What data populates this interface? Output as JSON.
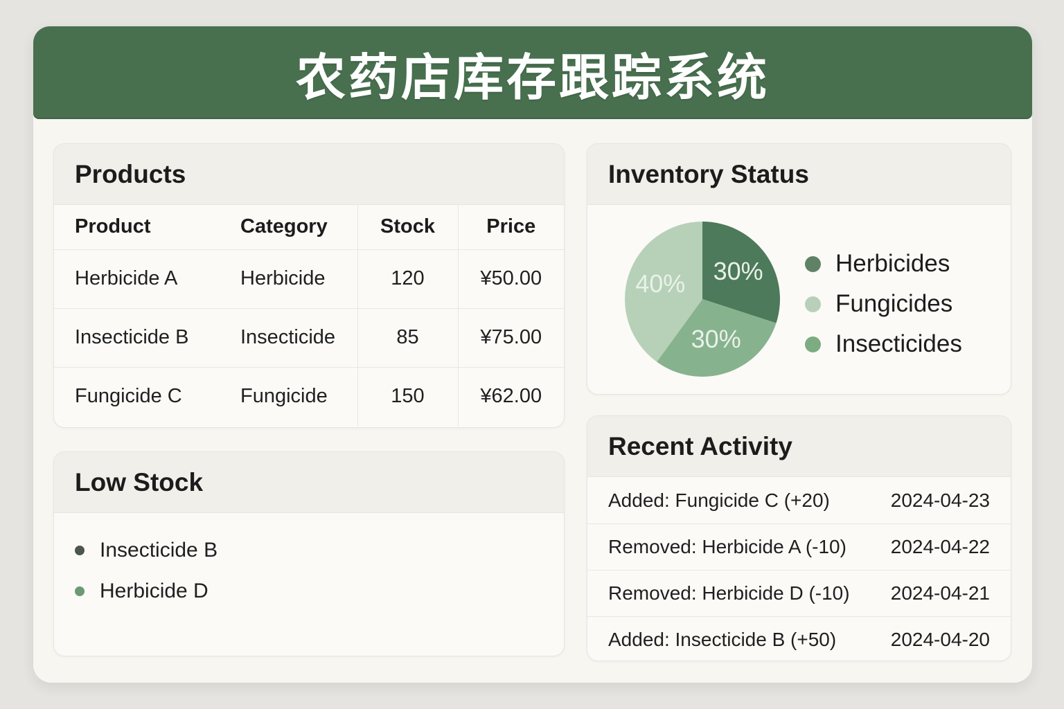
{
  "header": {
    "title": "农药店库存跟踪系统"
  },
  "colors": {
    "page_background": "#e5e4e0",
    "card_background": "#f7f6f1",
    "header_background": "#48704f",
    "header_text": "#ffffff",
    "panel_background": "#fbfaf7",
    "panel_header_background": "#f0efe9"
  },
  "products": {
    "title": "Products",
    "columns": [
      "Product",
      "Category",
      "Stock",
      "Price"
    ],
    "rows": [
      {
        "product": "Herbicide A",
        "category": "Herbicide",
        "stock": "120",
        "price": "¥50.00"
      },
      {
        "product": "Insecticide B",
        "category": "Insecticide",
        "stock": "85",
        "price": "¥75.00"
      },
      {
        "product": "Fungicide C",
        "category": "Fungicide",
        "stock": "150",
        "price": "¥62.00"
      }
    ]
  },
  "low_stock": {
    "title": "Low Stock",
    "items": [
      {
        "label": "Insecticide B",
        "color": "#4d564d"
      },
      {
        "label": "Herbicide D",
        "color": "#6a9a74"
      }
    ]
  },
  "inventory_status": {
    "title": "Inventory Status"
  },
  "chart_data": {
    "type": "pie",
    "title": "Inventory Status",
    "start_angle_deg": 0,
    "direction": "clockwise",
    "slices": [
      {
        "label": "Herbicides",
        "value_pct": 30,
        "display": "30%",
        "color": "#4d7a5a"
      },
      {
        "label": "Insecticides",
        "value_pct": 30,
        "display": "30%",
        "color": "#87b28e"
      },
      {
        "label": "Fungicides",
        "value_pct": 40,
        "display": "40%",
        "color": "#b6d1b7"
      }
    ],
    "slice_label_color": "#eaf1ea",
    "legend": {
      "position": "right",
      "items": [
        {
          "label": "Herbicides",
          "color": "#5f8266"
        },
        {
          "label": "Fungicides",
          "color": "#b9cfba"
        },
        {
          "label": "Insecticides",
          "color": "#7dab82"
        }
      ]
    }
  },
  "recent_activity": {
    "title": "Recent Activity",
    "items": [
      {
        "text": "Added: Fungicide C (+20)",
        "date": "2024-04-23"
      },
      {
        "text": "Removed: Herbicide A (-10)",
        "date": "2024-04-22"
      },
      {
        "text": "Removed: Herbicide D (-10)",
        "date": "2024-04-21"
      },
      {
        "text": "Added: Insecticide B (+50)",
        "date": "2024-04-20"
      }
    ]
  }
}
